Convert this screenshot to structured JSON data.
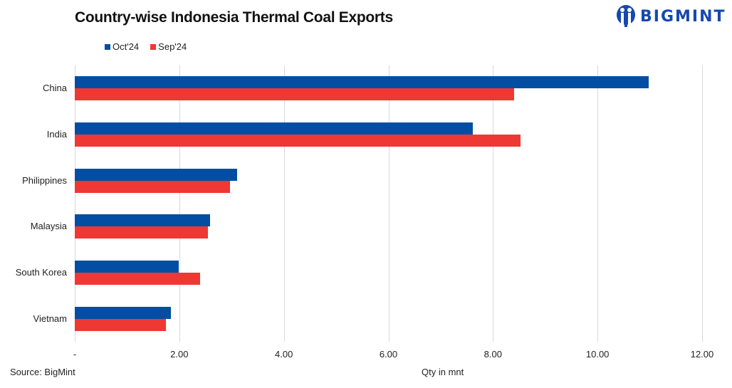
{
  "header": {
    "title": "Country-wise Indonesia Thermal Coal Exports",
    "logo_text": "BIGMINT"
  },
  "legend": [
    {
      "label": "Oct'24",
      "color": "#034ea2"
    },
    {
      "label": "Sep'24",
      "color": "#ef3833"
    }
  ],
  "footer": {
    "source": "Source: BigMint",
    "xlabel": "Qty in mnt"
  },
  "chart_data": {
    "type": "bar",
    "orientation": "horizontal",
    "title": "Country-wise Indonesia Thermal Coal Exports",
    "categories": [
      "China",
      "India",
      "Philippines",
      "Malaysia",
      "South Korea",
      "Vietnam"
    ],
    "series": [
      {
        "name": "Oct'24",
        "color": "#034ea2",
        "values": [
          10.98,
          7.62,
          3.11,
          2.59,
          1.99,
          1.84
        ]
      },
      {
        "name": "Sep'24",
        "color": "#ef3833",
        "values": [
          8.41,
          8.52,
          2.97,
          2.55,
          2.4,
          1.74
        ]
      }
    ],
    "xlabel": "Qty in mnt",
    "ylabel": "",
    "xlim": [
      0,
      12
    ],
    "xticks": [
      "-",
      "2.00",
      "4.00",
      "6.00",
      "8.00",
      "10.00",
      "12.00"
    ],
    "grid": true,
    "legend_position": "top-left",
    "source": "Source: BigMint"
  }
}
